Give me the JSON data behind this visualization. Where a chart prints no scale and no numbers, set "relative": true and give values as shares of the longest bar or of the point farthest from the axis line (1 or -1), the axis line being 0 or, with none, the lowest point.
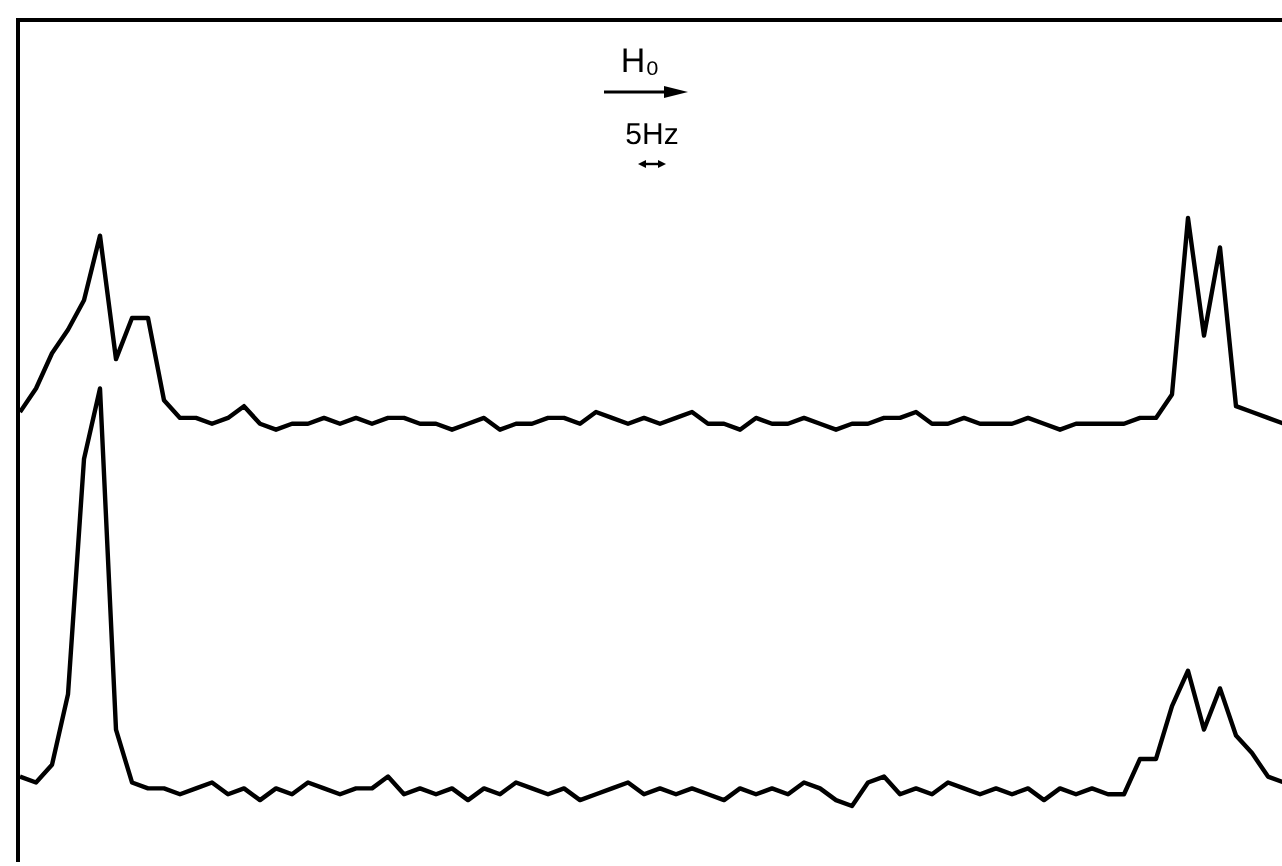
{
  "chart_data": {
    "type": "line",
    "relative": true,
    "marker": "none",
    "line_style": "solid",
    "annotations": [
      "H₀",
      "5Hz"
    ],
    "categories": [
      null,
      null,
      null,
      null,
      null,
      null,
      null,
      null,
      null,
      null,
      null,
      null,
      null,
      null,
      null,
      null,
      null,
      null,
      null,
      null,
      null,
      null,
      null,
      null,
      null,
      null,
      null,
      null,
      null,
      null,
      null,
      null,
      null,
      null,
      null,
      null,
      null,
      null,
      null,
      null,
      null,
      null,
      null,
      null,
      null,
      null,
      null,
      null,
      null,
      null,
      null,
      null,
      null,
      null,
      null,
      null,
      null,
      null,
      null,
      null,
      null,
      null,
      null,
      null,
      null,
      null,
      null,
      null,
      null,
      null,
      null,
      null,
      null,
      null,
      null,
      null,
      null,
      null,
      null,
      null
    ],
    "series": [
      {
        "color": "#000000",
        "values": [
          0.67,
          0.71,
          0.77,
          0.81,
          0.86,
          0.97,
          0.76,
          0.83,
          0.83,
          0.69,
          0.66,
          0.66,
          0.65,
          0.66,
          0.68,
          0.65,
          0.64,
          0.65,
          0.65,
          0.66,
          0.65,
          0.66,
          0.65,
          0.66,
          0.66,
          0.65,
          0.65,
          0.64,
          0.65,
          0.66,
          0.64,
          0.65,
          0.65,
          0.66,
          0.66,
          0.65,
          0.67,
          0.66,
          0.65,
          0.66,
          0.65,
          0.66,
          0.67,
          0.65,
          0.65,
          0.64,
          0.66,
          0.65,
          0.65,
          0.66,
          0.65,
          0.64,
          0.65,
          0.65,
          0.66,
          0.66,
          0.67,
          0.65,
          0.65,
          0.66,
          0.65,
          0.65,
          0.65,
          0.66,
          0.65,
          0.64,
          0.65,
          0.65,
          0.65,
          0.65,
          0.66,
          0.66,
          0.7,
          1.0,
          0.8,
          0.95,
          0.68,
          0.67,
          0.66,
          0.65
        ]
      },
      {
        "color": "#000000",
        "values": [
          0.05,
          0.04,
          0.07,
          0.19,
          0.59,
          0.71,
          0.13,
          0.04,
          0.03,
          0.03,
          0.02,
          0.03,
          0.04,
          0.02,
          0.03,
          0.01,
          0.03,
          0.02,
          0.04,
          0.03,
          0.02,
          0.03,
          0.03,
          0.05,
          0.02,
          0.03,
          0.02,
          0.03,
          0.01,
          0.03,
          0.02,
          0.04,
          0.03,
          0.02,
          0.03,
          0.01,
          0.02,
          0.03,
          0.04,
          0.02,
          0.03,
          0.02,
          0.03,
          0.02,
          0.01,
          0.03,
          0.02,
          0.03,
          0.02,
          0.04,
          0.03,
          0.01,
          0.0,
          0.04,
          0.05,
          0.02,
          0.03,
          0.02,
          0.04,
          0.03,
          0.02,
          0.03,
          0.02,
          0.03,
          0.01,
          0.03,
          0.02,
          0.03,
          0.02,
          0.02,
          0.08,
          0.08,
          0.17,
          0.23,
          0.13,
          0.2,
          0.12,
          0.09,
          0.05,
          0.04
        ]
      }
    ]
  }
}
